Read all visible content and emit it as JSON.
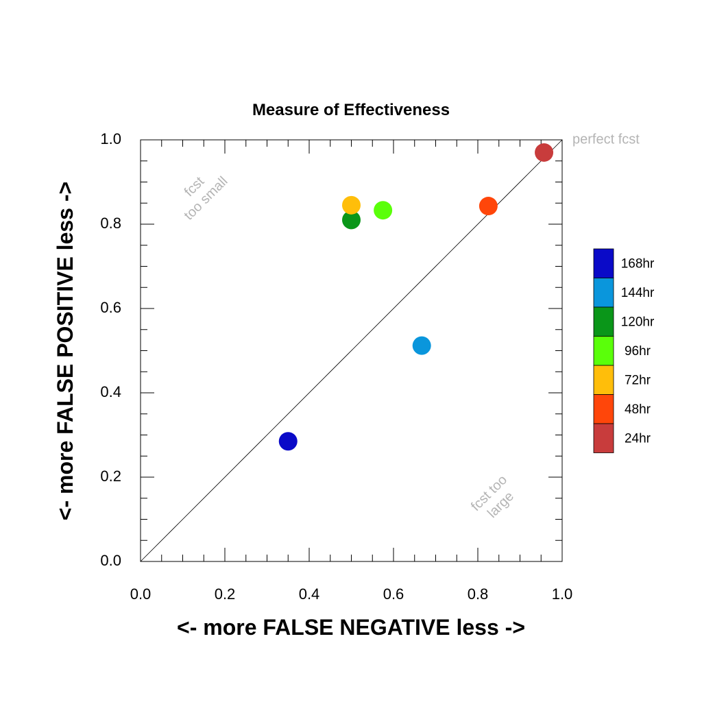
{
  "chart_data": {
    "type": "scatter",
    "title": "Measure of Effectiveness",
    "xlabel": "<- more   FALSE NEGATIVE   less ->",
    "ylabel": "<- more   FALSE POSITIVE   less ->",
    "xlim": [
      0.0,
      1.0
    ],
    "ylim": [
      0.0,
      1.0
    ],
    "xticks": [
      "0.0",
      "0.2",
      "0.4",
      "0.6",
      "0.8",
      "1.0"
    ],
    "yticks": [
      "0.0",
      "0.2",
      "0.4",
      "0.6",
      "0.8",
      "1.0"
    ],
    "grid": false,
    "legend_placement": "right",
    "reference_line": {
      "from": [
        0.0,
        0.0
      ],
      "to": [
        1.0,
        1.0
      ]
    },
    "annotations": {
      "perfect": "perfect fcst",
      "too_small_1": "fcst",
      "too_small_2": "too small",
      "too_large_1": "fcst too",
      "too_large_2": "large"
    },
    "series": [
      {
        "name": "168hr",
        "color": "#0a0ac8",
        "x": 0.35,
        "y": 0.285
      },
      {
        "name": "144hr",
        "color": "#0a96dc",
        "x": 0.667,
        "y": 0.512
      },
      {
        "name": "120hr",
        "color": "#0a9619",
        "x": 0.5,
        "y": 0.81
      },
      {
        "name": "96hr",
        "color": "#5aff0a",
        "x": 0.575,
        "y": 0.833
      },
      {
        "name": "72hr",
        "color": "#ffbe0a",
        "x": 0.5,
        "y": 0.845
      },
      {
        "name": "48hr",
        "color": "#ff460a",
        "x": 0.825,
        "y": 0.843
      },
      {
        "name": "24hr",
        "color": "#c83c3c",
        "x": 0.957,
        "y": 0.97
      }
    ]
  }
}
